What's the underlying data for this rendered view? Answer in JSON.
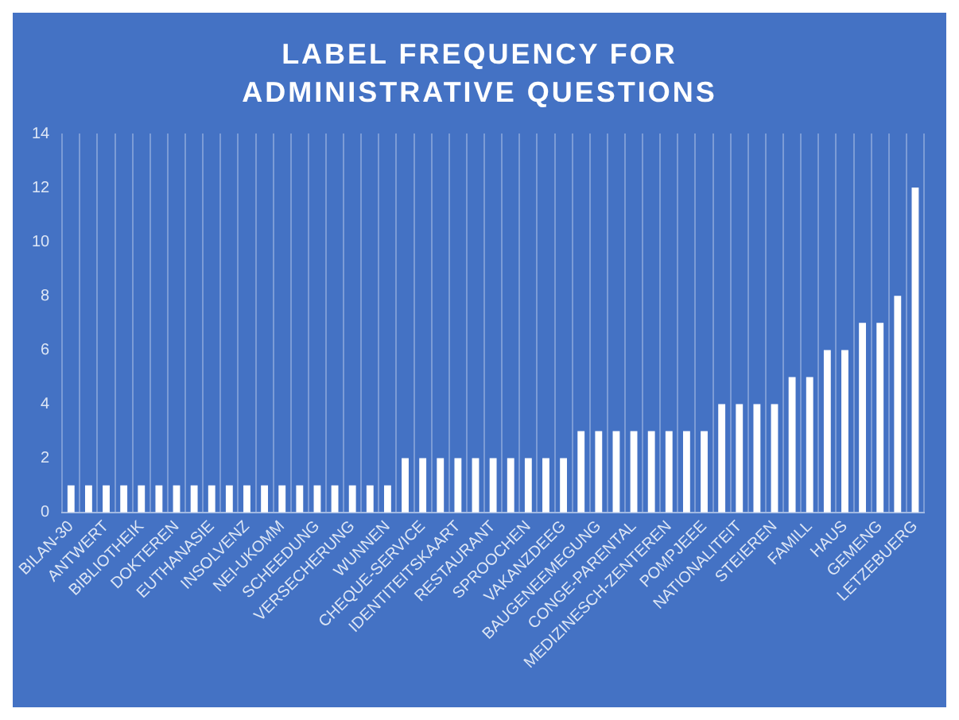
{
  "chart_data": {
    "type": "bar",
    "title": "LABEL FREQUENCY FOR ADMINISTRATIVE QUESTIONS",
    "categories": [
      "BILAN-30",
      null,
      "ANTWERT",
      null,
      "BIBLIOTHEIK",
      null,
      "DOKTEREN",
      null,
      "EUTHANASIE",
      null,
      "INSOLVENZ",
      null,
      "NEI-UKOMM",
      null,
      "SCHEEDUNG",
      null,
      "VERSECHERUNG",
      null,
      "WUNNEN",
      null,
      "CHEQUE-SERVICE",
      null,
      "IDENTITEITSKAART",
      null,
      "RESTAURANT",
      null,
      "SPROOCHEN",
      null,
      "VAKANZDEEG",
      null,
      "BAUGENEEMEGUNG",
      null,
      "CONGE-PARENTAL",
      null,
      "MEDIZINESCH-ZENTEREN",
      null,
      "POMPJEEE",
      null,
      "NATIONALITEIT",
      null,
      "STEIEREN",
      null,
      "FAMILL",
      null,
      "HAUS",
      null,
      "GEMENG",
      null,
      "LETZEBUERG"
    ],
    "values": [
      1,
      1,
      1,
      1,
      1,
      1,
      1,
      1,
      1,
      1,
      1,
      1,
      1,
      1,
      1,
      1,
      1,
      1,
      1,
      2,
      2,
      2,
      2,
      2,
      2,
      2,
      2,
      2,
      2,
      3,
      3,
      3,
      3,
      3,
      3,
      3,
      3,
      4,
      4,
      4,
      4,
      5,
      5,
      6,
      6,
      7,
      7,
      8,
      12
    ],
    "color": "#ffffff",
    "ylim": [
      0,
      14
    ],
    "yticks": [
      0,
      2,
      4,
      6,
      8,
      10,
      12,
      14
    ],
    "grid": "x"
  }
}
